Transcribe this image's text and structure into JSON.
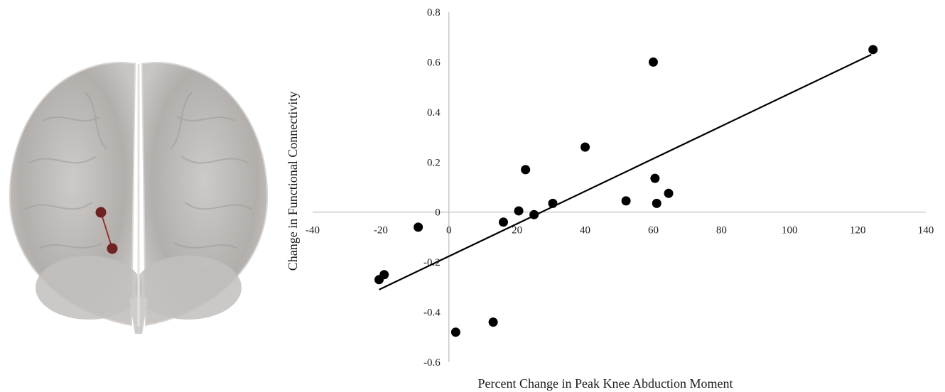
{
  "chart_data": {
    "type": "scatter",
    "title": "",
    "xlabel": "Percent Change in Peak Knee Abduction Moment",
    "ylabel": "Change in Functional Connectivity",
    "xlim": [
      -40,
      140
    ],
    "ylim": [
      -0.6,
      0.8
    ],
    "x_ticks": [
      "-40",
      "-20",
      "0",
      "20",
      "40",
      "60",
      "80",
      "100",
      "120",
      "140"
    ],
    "y_ticks": [
      "0.8",
      "0.6",
      "0.4",
      "0.2",
      "0",
      "-0.2",
      "-0.4",
      "-0.6"
    ],
    "grid": false,
    "legend": "none",
    "marker_color": "#000000",
    "trendline": {
      "type": "linear",
      "color": "#000000",
      "x": [
        -20.5,
        124
      ],
      "y": [
        -0.31,
        0.63
      ]
    },
    "points": [
      {
        "x": -20.5,
        "y": -0.27
      },
      {
        "x": -19,
        "y": -0.25
      },
      {
        "x": -9,
        "y": -0.06
      },
      {
        "x": 2,
        "y": -0.48
      },
      {
        "x": 13,
        "y": -0.44
      },
      {
        "x": 16,
        "y": -0.04
      },
      {
        "x": 20.5,
        "y": 0.005
      },
      {
        "x": 22.5,
        "y": 0.17
      },
      {
        "x": 25,
        "y": -0.01
      },
      {
        "x": 30.5,
        "y": 0.035
      },
      {
        "x": 40,
        "y": 0.26
      },
      {
        "x": 52,
        "y": 0.045
      },
      {
        "x": 60,
        "y": 0.6
      },
      {
        "x": 60.5,
        "y": 0.135
      },
      {
        "x": 61,
        "y": 0.035
      },
      {
        "x": 64.5,
        "y": 0.075
      },
      {
        "x": 124.5,
        "y": 0.65
      }
    ]
  },
  "brain_figure": {
    "name": "brain rendering with connectivity edge",
    "node_color": "#6e2222",
    "edge_color": "#9a3030"
  }
}
